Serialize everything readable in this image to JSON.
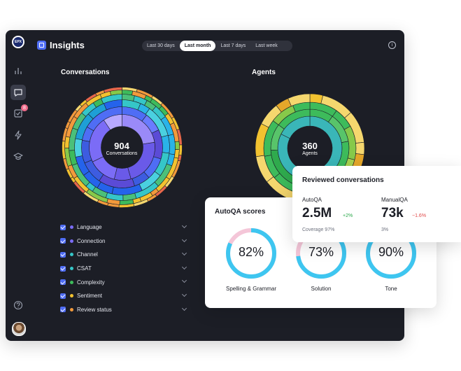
{
  "app": {
    "logo_text": "EPX",
    "title": "Insights",
    "badge_count": "8"
  },
  "tabs": [
    {
      "label": "Last 30 days",
      "active": false
    },
    {
      "label": "Last month",
      "active": true
    },
    {
      "label": "Last 7 days",
      "active": false
    },
    {
      "label": "Last week",
      "active": false
    }
  ],
  "conversations": {
    "title": "Conversations",
    "value": "904",
    "caption": "Conversations"
  },
  "agents": {
    "title": "Agents",
    "value": "360",
    "caption": "Agents"
  },
  "legend": [
    {
      "label": "Language",
      "color": "#7b6cf6"
    },
    {
      "label": "Connection",
      "color": "#7b6cf6"
    },
    {
      "label": "Channel",
      "color": "#35c6c8"
    },
    {
      "label": "CSAT",
      "color": "#35c6c8"
    },
    {
      "label": "Complexity",
      "color": "#3dbb5b"
    },
    {
      "label": "Sentiment",
      "color": "#f2c230"
    },
    {
      "label": "Review status",
      "color": "#f29a3c"
    }
  ],
  "autoqa": {
    "title": "AutoQA scores",
    "gauges": [
      {
        "value": "82%",
        "fraction": 0.82,
        "label": "Spelling & Grammar"
      },
      {
        "value": "73%",
        "fraction": 0.73,
        "label": "Solution"
      },
      {
        "value": "90%",
        "fraction": 0.9,
        "label": "Tone"
      }
    ]
  },
  "reviewed": {
    "title": "Reviewed conversations",
    "autoqa_label": "AutoQA",
    "autoqa_value": "2.5M",
    "autoqa_delta": "+2%",
    "autoqa_sub": "Coverage 97%",
    "manualqa_label": "ManualQA",
    "manualqa_value": "73k",
    "manualqa_delta": "−1.6%",
    "manualqa_sub": "3%"
  },
  "colors": {
    "accent": "#4f6df5",
    "gauge": "#3ec6f0",
    "positive": "#2aa84a",
    "negative": "#e04848"
  },
  "icons": [
    "logo-icon",
    "chart-bar-icon",
    "chat-icon",
    "checklist-icon",
    "lightning-icon",
    "graduation-cap-icon",
    "help-icon",
    "info-icon",
    "chevron-down-icon",
    "checkbox-icon"
  ]
}
